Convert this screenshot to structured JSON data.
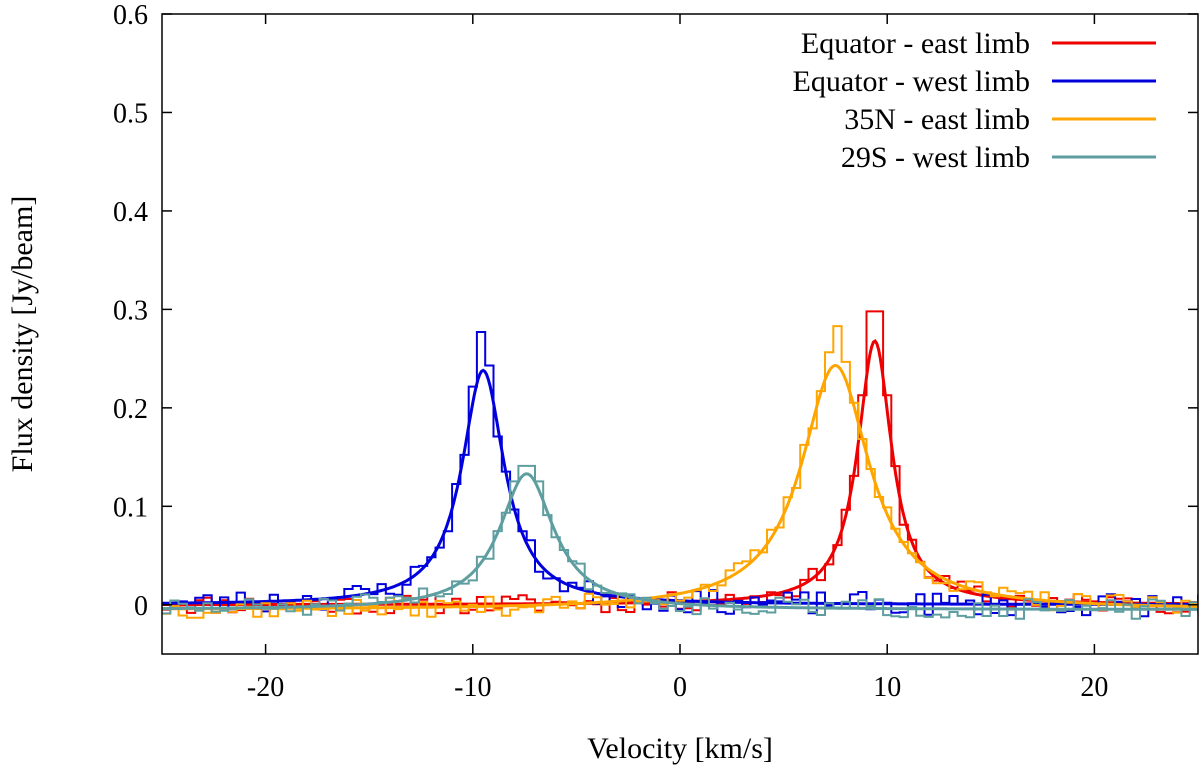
{
  "chart_data": {
    "type": "line",
    "title": "",
    "xlabel": "Velocity [km/s]",
    "ylabel": "Flux density [Jy/beam]",
    "xlim": [
      -25,
      25
    ],
    "ylim": [
      -0.05,
      0.6
    ],
    "xticks": [
      -20,
      -10,
      0,
      10,
      20
    ],
    "xtick_labels": [
      "-20",
      "-10",
      "0",
      "10",
      "20"
    ],
    "yticks": [
      0,
      0.1,
      0.2,
      0.3,
      0.4,
      0.5,
      0.6
    ],
    "ytick_labels": [
      "0",
      "0.1",
      "0.2",
      "0.3",
      "0.4",
      "0.5",
      "0.6"
    ],
    "grid": false,
    "legend_position": "top-right",
    "series": [
      {
        "name": "Equator - east limb",
        "color": "#ee0000",
        "fit": {
          "center": 9.4,
          "amplitude": 0.268,
          "hwhm": 1.0,
          "baseline": 0.0
        },
        "observed_peak": 0.298,
        "noise": 0.01,
        "seed": 11
      },
      {
        "name": "Equator - west limb",
        "color": "#0000dd",
        "fit": {
          "center": -9.5,
          "amplitude": 0.238,
          "hwhm": 1.25,
          "baseline": 0.0
        },
        "observed_peak": 0.277,
        "noise": 0.012,
        "seed": 23
      },
      {
        "name": "35N - east limb",
        "color": "#ffa500",
        "fit": {
          "center": 7.5,
          "amplitude": 0.248,
          "hwhm": 2.0,
          "baseline": -0.005
        },
        "observed_peak": 0.283,
        "noise": 0.01,
        "seed": 37
      },
      {
        "name": "29S - west limb",
        "color": "#5f9ea0",
        "fit": {
          "center": -7.4,
          "amplitude": 0.138,
          "hwhm": 1.6,
          "baseline": -0.005
        },
        "observed_peak": 0.141,
        "noise": 0.01,
        "seed": 51
      }
    ]
  }
}
